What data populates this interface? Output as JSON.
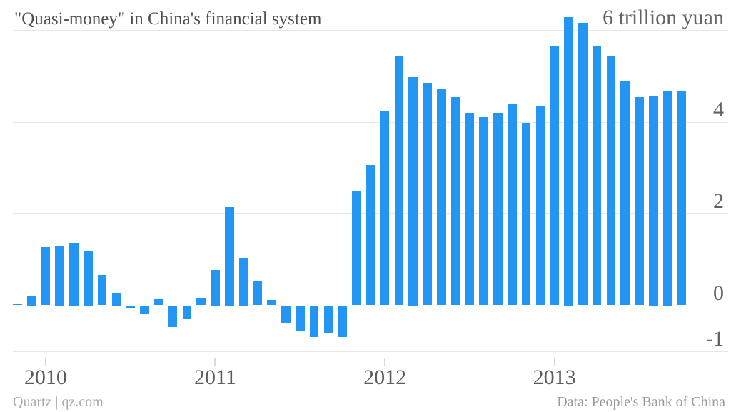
{
  "header": {
    "title": "\"Quasi-money\" in China's financial system",
    "unit_label": "6 trillion yuan"
  },
  "footer": {
    "source_left": "Quartz | qz.com",
    "source_right": "Data: People's Bank of China"
  },
  "colors": {
    "bar": "#2396f4",
    "grid": "#e7e7e7",
    "title_text": "#4f4f4f",
    "axis_text": "#636363",
    "footer_left_text": "#ababab",
    "footer_right_text": "#999999",
    "background": "#ffffff"
  },
  "chart_data": {
    "type": "bar",
    "title": "\"Quasi-money\" in China's financial system",
    "unit": "trillion yuan",
    "xlabel": "",
    "ylabel": "6 trillion yuan",
    "ylim": [
      -1.05,
      6.35
    ],
    "grid": true,
    "legend": false,
    "yticks": [
      6,
      4,
      2,
      0,
      -1
    ],
    "ytick_labels": [
      "6 trillion yuan",
      "4",
      "2",
      "0",
      "-1"
    ],
    "year_ticks": [
      {
        "label": "2010",
        "month_index": 2
      },
      {
        "label": "2011",
        "month_index": 14
      },
      {
        "label": "2012",
        "month_index": 26
      },
      {
        "label": "2013",
        "month_index": 38
      }
    ],
    "x": [
      "Nov 2009",
      "Dec 2009",
      "Jan 2010",
      "Feb 2010",
      "Mar 2010",
      "Apr 2010",
      "May 2010",
      "Jun 2010",
      "Jul 2010",
      "Aug 2010",
      "Sep 2010",
      "Oct 2010",
      "Nov 2010",
      "Dec 2010",
      "Jan 2011",
      "Feb 2011",
      "Mar 2011",
      "Apr 2011",
      "May 2011",
      "Jun 2011",
      "Jul 2011",
      "Aug 2011",
      "Sep 2011",
      "Oct 2011",
      "Nov 2011",
      "Dec 2011",
      "Jan 2012",
      "Feb 2012",
      "Mar 2012",
      "Apr 2012",
      "May 2012",
      "Jun 2012",
      "Jul 2012",
      "Aug 2012",
      "Sep 2012",
      "Oct 2012",
      "Nov 2012",
      "Dec 2012",
      "Jan 2013",
      "Feb 2013",
      "Mar 2013",
      "Apr 2013",
      "May 2013",
      "Jun 2013",
      "Jul 2013",
      "Aug 2013",
      "Sep 2013",
      "Oct 2013"
    ],
    "values": [
      0.03,
      0.21,
      1.27,
      1.3,
      1.37,
      1.19,
      0.66,
      0.28,
      -0.05,
      -0.19,
      0.13,
      -0.47,
      -0.3,
      0.17,
      0.77,
      2.14,
      1.02,
      0.52,
      0.12,
      -0.4,
      -0.57,
      -0.69,
      -0.61,
      -0.69,
      2.5,
      3.06,
      4.23,
      5.43,
      4.98,
      4.85,
      4.72,
      4.53,
      4.19,
      4.1,
      4.19,
      4.4,
      3.97,
      4.33,
      5.66,
      6.28,
      6.15,
      5.66,
      5.43,
      4.9,
      4.53,
      4.56,
      4.67,
      4.66
    ]
  }
}
